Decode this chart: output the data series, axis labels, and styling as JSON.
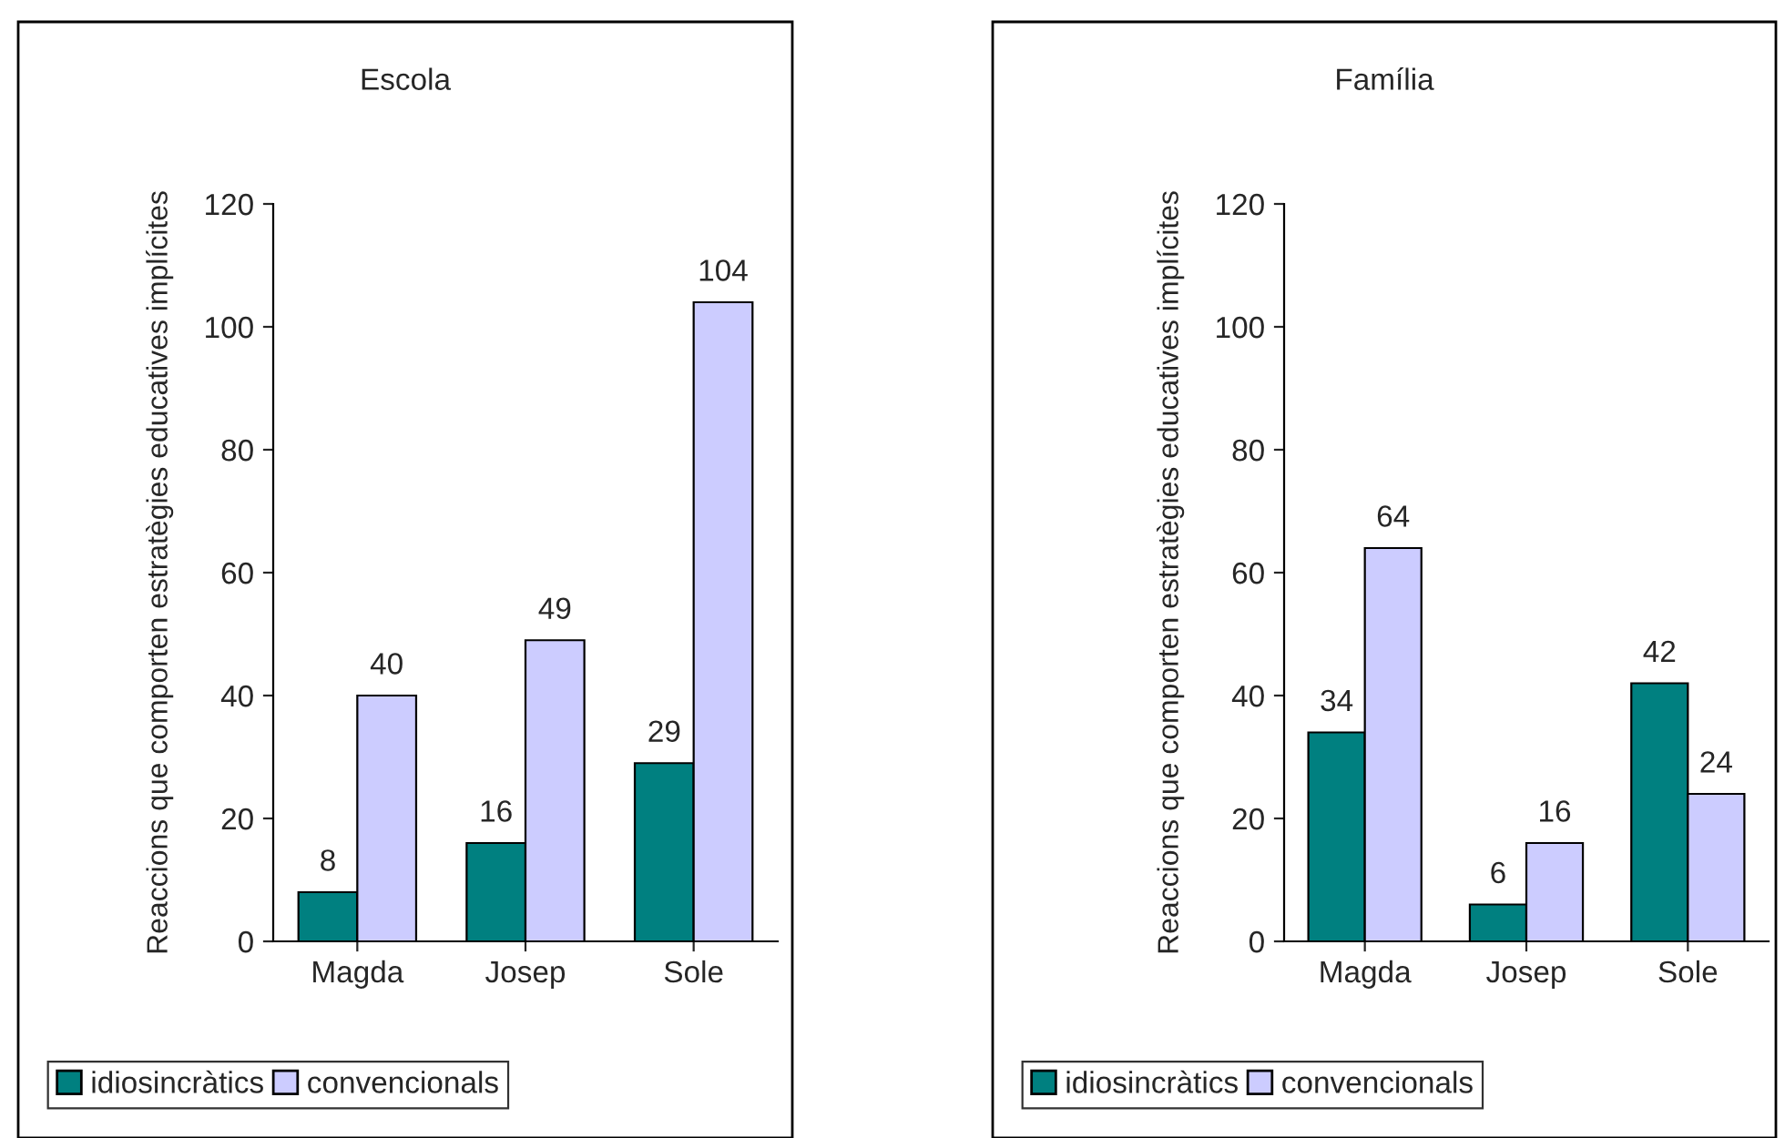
{
  "chart_data": [
    {
      "type": "bar",
      "title": "Escola",
      "ylabel": "Reaccions que comporten estratègies educatives implícites",
      "categories": [
        "Magda",
        "Josep",
        "Sole"
      ],
      "series": [
        {
          "name": "idiosincràtics",
          "color": "#008080",
          "values": [
            8,
            16,
            29
          ]
        },
        {
          "name": "convencionals",
          "color": "#ccccff",
          "values": [
            40,
            49,
            104
          ]
        }
      ],
      "ylim": [
        0,
        120
      ],
      "yticks": [
        0,
        20,
        40,
        60,
        80,
        100,
        120
      ],
      "data_labels": true,
      "legend": "bottom",
      "grid": false
    },
    {
      "type": "bar",
      "title": "Família",
      "ylabel": "Reaccions que comporten estratègies educatives implícites",
      "categories": [
        "Magda",
        "Josep",
        "Sole"
      ],
      "series": [
        {
          "name": "idiosincràtics",
          "color": "#008080",
          "values": [
            34,
            6,
            42
          ]
        },
        {
          "name": "convencionals",
          "color": "#ccccff",
          "values": [
            64,
            16,
            24
          ]
        }
      ],
      "ylim": [
        0,
        120
      ],
      "yticks": [
        0,
        20,
        40,
        60,
        80,
        100,
        120
      ],
      "data_labels": true,
      "legend": "bottom",
      "grid": false
    }
  ]
}
